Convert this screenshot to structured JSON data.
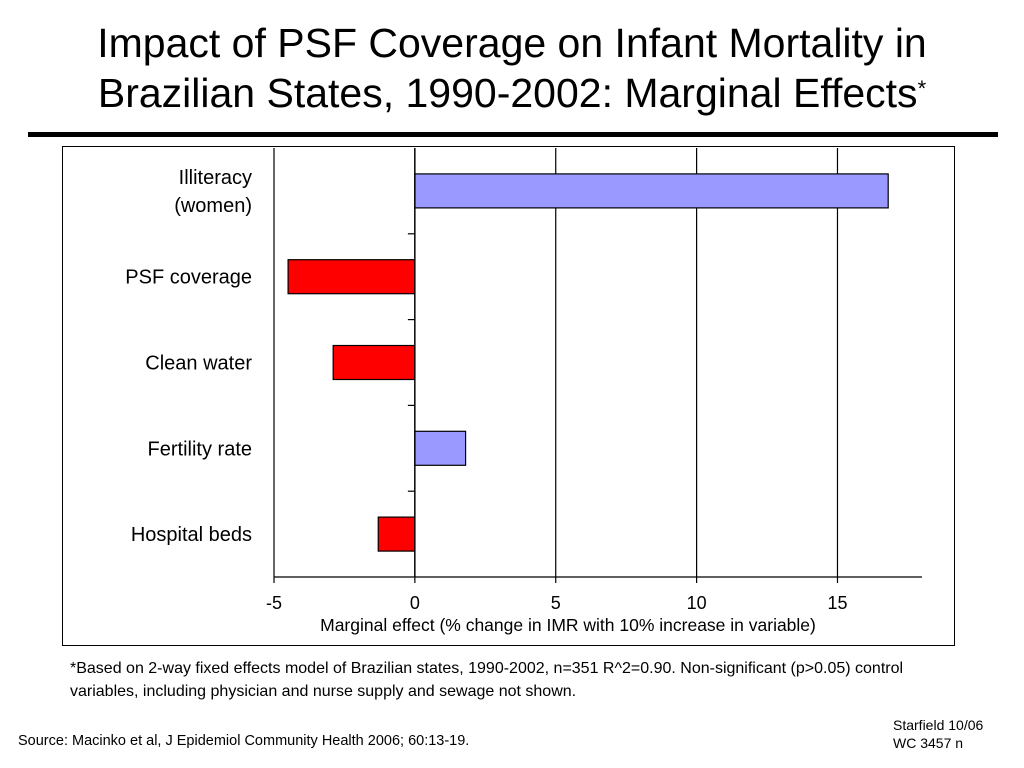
{
  "title": {
    "line1": "Impact of PSF Coverage on Infant Mortality in",
    "line2": "Brazilian States, 1990-2002: Marginal Effects",
    "marker": "*"
  },
  "footnote": "*Based on 2-way fixed effects model of Brazilian states, 1990-2002, n=351 R^2=0.90. Non-significant (p>0.05) control variables, including physician and nurse supply and sewage not shown.",
  "source": "Source: Macinko et al, J Epidemiol Community Health 2006; 60:13-19.",
  "credit": {
    "line1": "Starfield 10/06",
    "line2": "WC 3457 n"
  },
  "colors": {
    "positive": "#9999ff",
    "negative": "#ff0000"
  },
  "chart_data": {
    "type": "bar",
    "orientation": "horizontal",
    "categories": [
      [
        "Illiteracy",
        "(women)"
      ],
      [
        "PSF coverage"
      ],
      [
        "Clean water"
      ],
      [
        "Fertility rate"
      ],
      [
        "Hospital beds"
      ]
    ],
    "values": [
      16.8,
      -4.5,
      -2.9,
      1.8,
      -1.3
    ],
    "xlabel": "Marginal effect (% change in IMR with 10% increase in variable)",
    "xlim": [
      -5,
      18
    ],
    "xticks": [
      -5,
      0,
      5,
      10,
      15
    ],
    "grid": true
  }
}
